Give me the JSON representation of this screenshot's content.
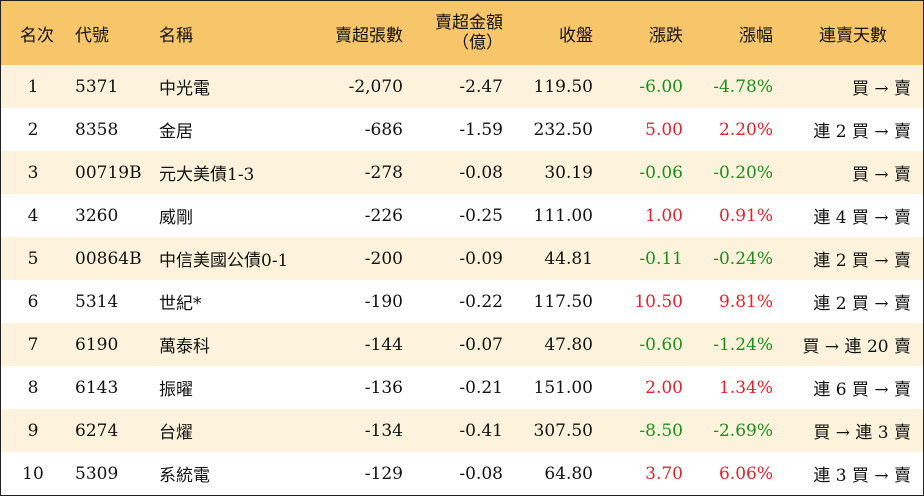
{
  "headers": {
    "rank": "名次",
    "code": "代號",
    "name": "名稱",
    "net_sell_volume": "賣超張數",
    "net_sell_amount_line1": "賣超金額",
    "net_sell_amount_line2": "（億）",
    "close": "收盤",
    "change": "漲跌",
    "change_pct": "漲幅",
    "streak": "連賣天數"
  },
  "rows": [
    {
      "rank": "1",
      "code": "5371",
      "name": "中光電",
      "volume": "-2,070",
      "amount": "-2.47",
      "close": "119.50",
      "change": "-6.00",
      "pct": "-4.78%",
      "streak": "買 → 賣",
      "dir": "down"
    },
    {
      "rank": "2",
      "code": "8358",
      "name": "金居",
      "volume": "-686",
      "amount": "-1.59",
      "close": "232.50",
      "change": "5.00",
      "pct": "2.20%",
      "streak": "連 2 買 → 賣",
      "dir": "up"
    },
    {
      "rank": "3",
      "code": "00719B",
      "name": "元大美債1-3",
      "volume": "-278",
      "amount": "-0.08",
      "close": "30.19",
      "change": "-0.06",
      "pct": "-0.20%",
      "streak": "買 → 賣",
      "dir": "down"
    },
    {
      "rank": "4",
      "code": "3260",
      "name": "威剛",
      "volume": "-226",
      "amount": "-0.25",
      "close": "111.00",
      "change": "1.00",
      "pct": "0.91%",
      "streak": "連 4 買 → 賣",
      "dir": "up"
    },
    {
      "rank": "5",
      "code": "00864B",
      "name": "中信美國公債0-1",
      "volume": "-200",
      "amount": "-0.09",
      "close": "44.81",
      "change": "-0.11",
      "pct": "-0.24%",
      "streak": "連 2 買 → 賣",
      "dir": "down"
    },
    {
      "rank": "6",
      "code": "5314",
      "name": "世紀*",
      "volume": "-190",
      "amount": "-0.22",
      "close": "117.50",
      "change": "10.50",
      "pct": "9.81%",
      "streak": "連 2 買 → 賣",
      "dir": "up"
    },
    {
      "rank": "7",
      "code": "6190",
      "name": "萬泰科",
      "volume": "-144",
      "amount": "-0.07",
      "close": "47.80",
      "change": "-0.60",
      "pct": "-1.24%",
      "streak": "買 → 連 20 賣",
      "dir": "down"
    },
    {
      "rank": "8",
      "code": "6143",
      "name": "振曜",
      "volume": "-136",
      "amount": "-0.21",
      "close": "151.00",
      "change": "2.00",
      "pct": "1.34%",
      "streak": "連 6 買 → 賣",
      "dir": "up"
    },
    {
      "rank": "9",
      "code": "6274",
      "name": "台燿",
      "volume": "-134",
      "amount": "-0.41",
      "close": "307.50",
      "change": "-8.50",
      "pct": "-2.69%",
      "streak": "買 → 連 3 賣",
      "dir": "down"
    },
    {
      "rank": "10",
      "code": "5309",
      "name": "系統電",
      "volume": "-129",
      "amount": "-0.08",
      "close": "64.80",
      "change": "3.70",
      "pct": "6.06%",
      "streak": "連 3 買 → 賣",
      "dir": "up"
    }
  ],
  "colors": {
    "header_bg": "#f7c56a",
    "row_alt_bg": "#fdf3dc",
    "up": "#e8202a",
    "down": "#1a8f1a"
  }
}
